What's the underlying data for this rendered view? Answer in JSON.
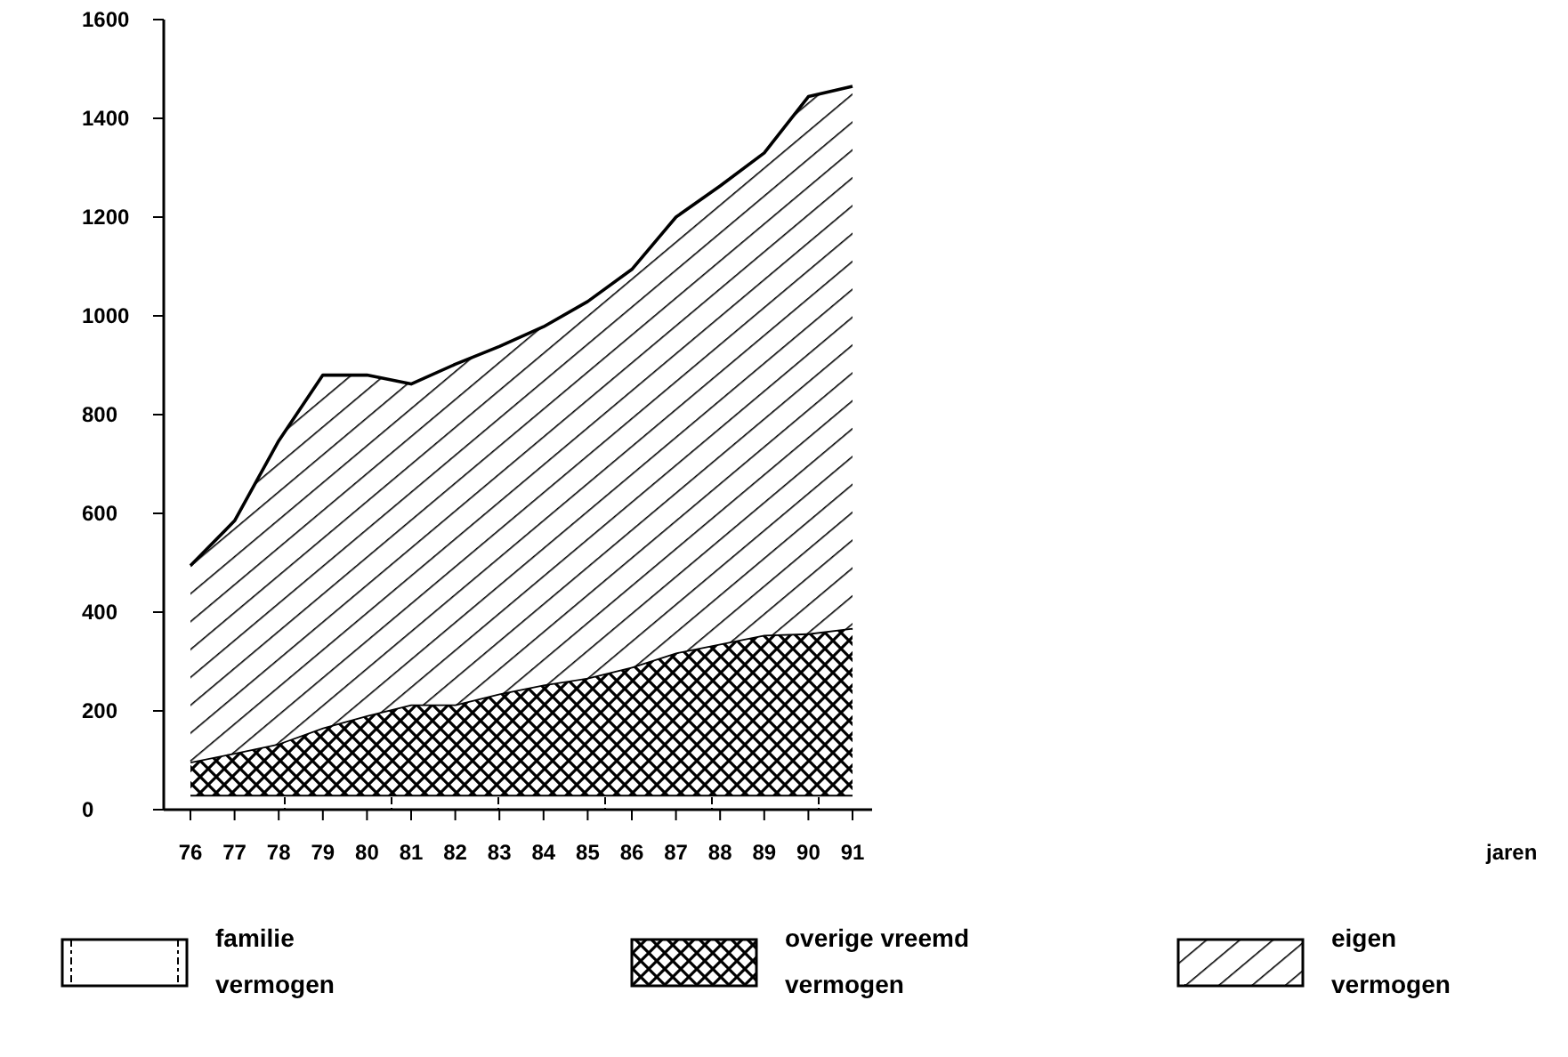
{
  "chart_data": {
    "type": "area",
    "stacked": true,
    "annotations": [
      "jaren"
    ],
    "categories": [
      "76",
      "77",
      "78",
      "79",
      "80",
      "81",
      "82",
      "83",
      "84",
      "85",
      "86",
      "87",
      "88",
      "89",
      "90",
      "91"
    ],
    "series": [
      {
        "name": "familie vermogen",
        "color": "#000000",
        "values": [
          30,
          30,
          30,
          30,
          30,
          30,
          30,
          30,
          30,
          30,
          30,
          30,
          30,
          30,
          30,
          30
        ]
      },
      {
        "name": "overige vreemd vermogen",
        "color": "#000000",
        "values": [
          67,
          85,
          104,
          136,
          161,
          183,
          183,
          205,
          223,
          237,
          259,
          288,
          306,
          324,
          327,
          338
        ]
      },
      {
        "name": "eigen vermogen",
        "color": "#000000",
        "values": [
          397,
          470,
          613,
          714,
          689,
          649,
          689,
          703,
          725,
          762,
          805,
          882,
          927,
          976,
          1087,
          1097
        ]
      }
    ],
    "ylim": [
      0,
      1600
    ],
    "yticks": [
      0,
      200,
      400,
      600,
      800,
      1000,
      1200,
      1400,
      1600
    ],
    "grid": false,
    "legend": "bottom"
  }
}
